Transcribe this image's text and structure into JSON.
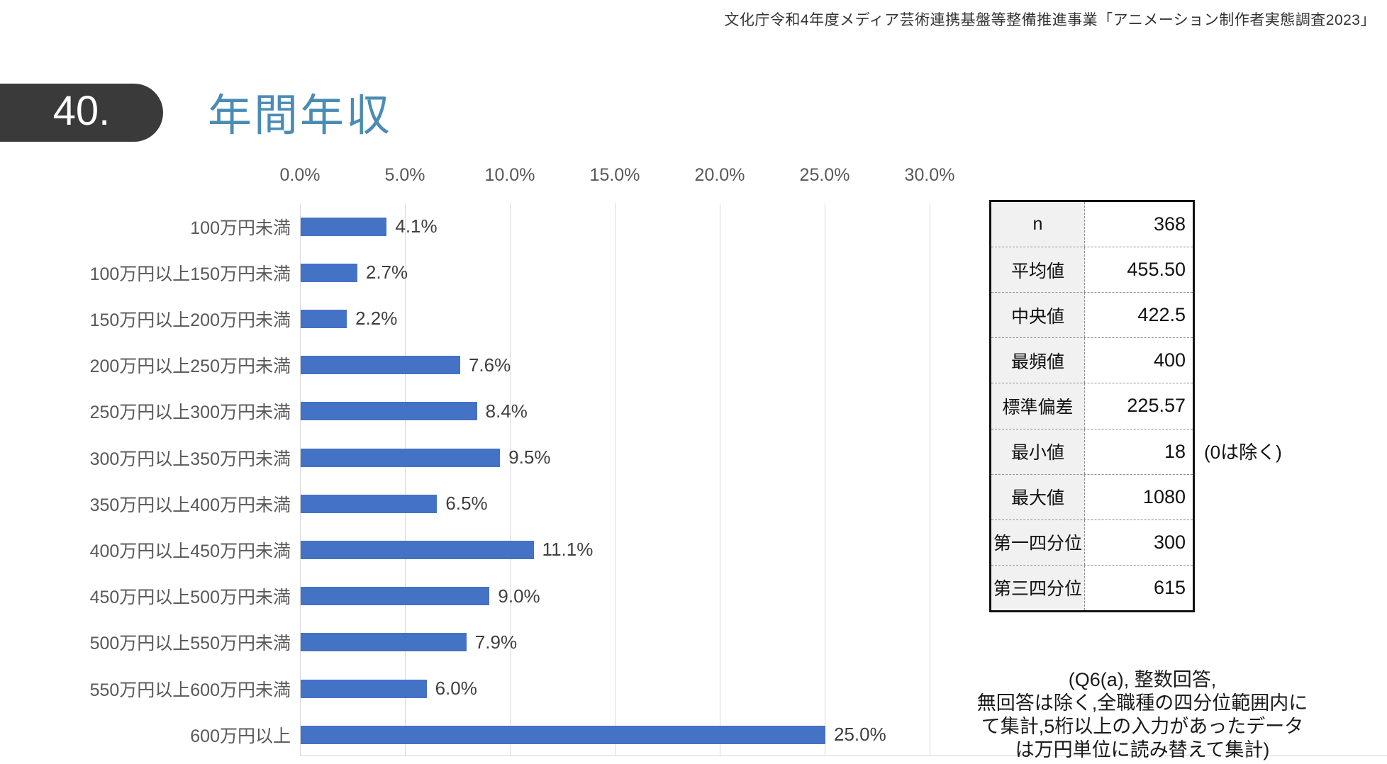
{
  "header": {
    "source_note": "文化庁令和4年度メディア芸術連携基盤等整備推進事業「アニメーション制作者実態調査2023」"
  },
  "title": {
    "number": "40.",
    "text": "年間年収"
  },
  "chart_data": {
    "type": "bar",
    "orientation": "horizontal",
    "title": "年間年収",
    "xlabel": "",
    "ylabel": "",
    "xlim": [
      0,
      30
    ],
    "grid": true,
    "bar_color": "#4472c4",
    "x_ticks": [
      "0.0%",
      "5.0%",
      "10.0%",
      "15.0%",
      "20.0%",
      "25.0%",
      "30.0%"
    ],
    "categories": [
      "100万円未満",
      "100万円以上150万円未満",
      "150万円以上200万円未満",
      "200万円以上250万円未満",
      "250万円以上300万円未満",
      "300万円以上350万円未満",
      "350万円以上400万円未満",
      "400万円以上450万円未満",
      "450万円以上500万円未満",
      "500万円以上550万円未満",
      "550万円以上600万円未満",
      "600万円以上"
    ],
    "values": [
      4.1,
      2.7,
      2.2,
      7.6,
      8.4,
      9.5,
      6.5,
      11.1,
      9.0,
      7.9,
      6.0,
      25.0
    ],
    "value_labels": [
      "4.1%",
      "2.7%",
      "2.2%",
      "7.6%",
      "8.4%",
      "9.5%",
      "6.5%",
      "11.1%",
      "9.0%",
      "7.9%",
      "6.0%",
      "25.0%"
    ]
  },
  "stats_table": {
    "rows": [
      {
        "label": "n",
        "value": "368"
      },
      {
        "label": "平均値",
        "value": "455.50"
      },
      {
        "label": "中央値",
        "value": "422.5"
      },
      {
        "label": "最頻値",
        "value": "400"
      },
      {
        "label": "標準偏差",
        "value": "225.57"
      },
      {
        "label": "最小値",
        "value": "18"
      },
      {
        "label": "最大値",
        "value": "1080"
      },
      {
        "label": "第一四分位",
        "value": "300"
      },
      {
        "label": "第三四分位",
        "value": "615"
      }
    ],
    "annotation": "(0は除く)"
  },
  "footnote": {
    "lines": [
      "(Q6(a), 整数回答,",
      "無回答は除く,全職種の四分位範囲内に",
      "て集計,5桁以上の入力があったデータ",
      "は万円単位に読み替えて集計)"
    ]
  },
  "colors": {
    "bar": "#4472c4",
    "title_blue": "#4a8cb4",
    "badge_dark": "#3a3a3a",
    "gridline": "#d9d9d9",
    "text_gray": "#595959"
  }
}
